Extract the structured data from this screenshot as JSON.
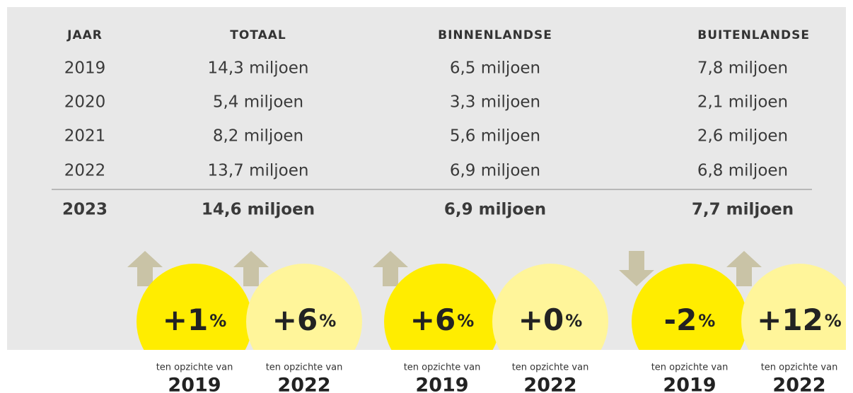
{
  "table": {
    "headers": [
      "JAAR",
      "TOTAAL",
      "BINNENLANDSE",
      "BUITENLANDSE"
    ],
    "rows": [
      [
        "2019",
        "14,3 miljoen",
        "6,5 miljoen",
        "7,8 miljoen"
      ],
      [
        "2020",
        "5,4 miljoen",
        "3,3 miljoen",
        "2,1 miljoen"
      ],
      [
        "2021",
        "8,2 miljoen",
        "5,6 miljoen",
        "2,6 miljoen"
      ],
      [
        "2022",
        "13,7 miljoen",
        "6,9 miljoen",
        "6,8 miljoen"
      ],
      [
        "2023",
        "14,6 miljoen",
        "6,9 miljoen",
        "7,7 miljoen"
      ]
    ]
  },
  "badges": [
    {
      "value": "+1",
      "unit": "%",
      "note": "ten opzichte van",
      "year": "2019"
    },
    {
      "value": "+6",
      "unit": "%",
      "note": "ten opzichte van",
      "year": "2022"
    },
    {
      "value": "+6",
      "unit": "%",
      "note": "ten opzichte van",
      "year": "2019"
    },
    {
      "value": "+0",
      "unit": "%",
      "note": "ten opzichte van",
      "year": "2022"
    },
    {
      "value": "-2",
      "unit": "%",
      "note": "ten opzichte van",
      "year": "2019"
    },
    {
      "value": "+12",
      "unit": "%",
      "note": "ten opzichte van",
      "year": "2022"
    }
  ]
}
